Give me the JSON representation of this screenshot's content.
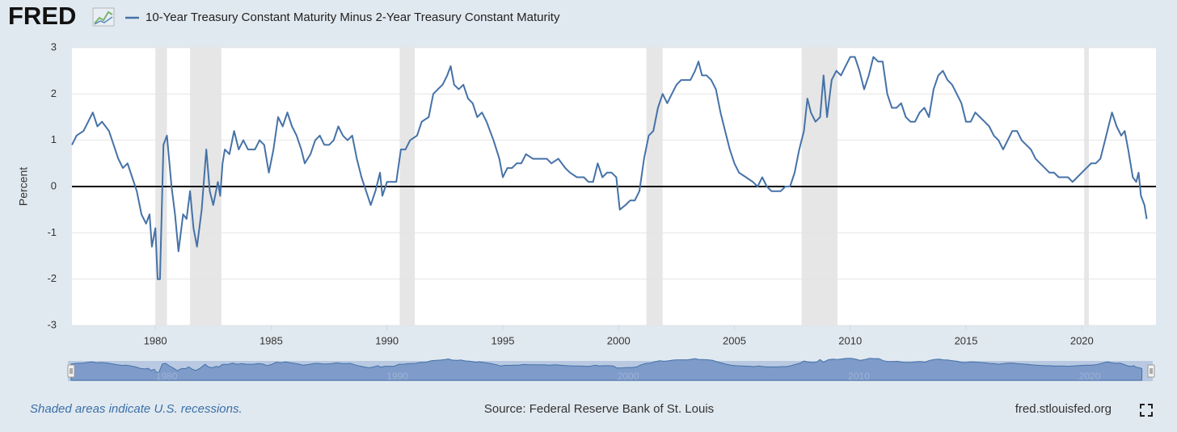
{
  "chart_data": {
    "type": "line",
    "logo": "FRED",
    "title": "10-Year Treasury Constant Maturity Minus 2-Year Treasury Constant Maturity",
    "y_label": "Percent",
    "note": "Shaded areas indicate U.S. recessions.",
    "source": "Source: Federal Reserve Bank of St. Louis",
    "site": "fred.stlouisfed.org",
    "color": "#4572a7",
    "recession_color": "#e6e6e6",
    "recessions": [
      [
        1980.0,
        1980.5
      ],
      [
        1981.5,
        1982.85
      ],
      [
        1990.55,
        1991.2
      ],
      [
        2001.2,
        2001.9
      ],
      [
        2007.9,
        2009.45
      ],
      [
        2020.1,
        2020.3
      ]
    ],
    "xlim": [
      1976.4,
      2023.2
    ],
    "xticks": [
      1980,
      1985,
      1990,
      1995,
      2000,
      2005,
      2010,
      2015,
      2020
    ],
    "ylim": [
      -3,
      3
    ],
    "yticks": [
      -3,
      -2,
      -1,
      0,
      1,
      2,
      3
    ],
    "grid": true,
    "x": [
      1976.4,
      1976.6,
      1976.9,
      1977.1,
      1977.3,
      1977.5,
      1977.7,
      1978.0,
      1978.2,
      1978.4,
      1978.6,
      1978.8,
      1979.0,
      1979.2,
      1979.4,
      1979.6,
      1979.75,
      1979.85,
      1980.0,
      1980.1,
      1980.2,
      1980.35,
      1980.5,
      1980.7,
      1980.85,
      1981.0,
      1981.2,
      1981.35,
      1981.5,
      1981.65,
      1981.8,
      1982.0,
      1982.2,
      1982.35,
      1982.5,
      1982.7,
      1982.8,
      1982.9,
      1983.0,
      1983.2,
      1983.4,
      1983.6,
      1983.8,
      1984.0,
      1984.3,
      1984.5,
      1984.7,
      1984.9,
      1985.1,
      1985.3,
      1985.5,
      1985.7,
      1985.9,
      1986.1,
      1986.3,
      1986.45,
      1986.7,
      1986.9,
      1987.1,
      1987.3,
      1987.5,
      1987.7,
      1987.9,
      1988.1,
      1988.3,
      1988.5,
      1988.7,
      1988.9,
      1989.1,
      1989.3,
      1989.5,
      1989.7,
      1989.8,
      1990.0,
      1990.2,
      1990.4,
      1990.6,
      1990.8,
      1991.0,
      1991.3,
      1991.5,
      1991.8,
      1992.0,
      1992.2,
      1992.4,
      1992.6,
      1992.75,
      1992.9,
      1993.1,
      1993.3,
      1993.5,
      1993.7,
      1993.9,
      1994.1,
      1994.3,
      1994.6,
      1994.85,
      1995.0,
      1995.2,
      1995.4,
      1995.6,
      1995.8,
      1996.0,
      1996.3,
      1996.6,
      1996.9,
      1997.1,
      1997.4,
      1997.7,
      1997.9,
      1998.2,
      1998.5,
      1998.7,
      1998.9,
      1999.1,
      1999.3,
      1999.5,
      1999.7,
      1999.9,
      2000.05,
      2000.3,
      2000.5,
      2000.7,
      2000.9,
      2001.1,
      2001.3,
      2001.5,
      2001.7,
      2001.9,
      2002.1,
      2002.3,
      2002.5,
      2002.7,
      2002.9,
      2003.1,
      2003.3,
      2003.45,
      2003.6,
      2003.8,
      2004.0,
      2004.2,
      2004.4,
      2004.6,
      2004.8,
      2005.0,
      2005.2,
      2005.5,
      2005.8,
      2006.0,
      2006.2,
      2006.4,
      2006.6,
      2006.8,
      2007.0,
      2007.2,
      2007.4,
      2007.6,
      2007.8,
      2008.0,
      2008.15,
      2008.3,
      2008.5,
      2008.7,
      2008.85,
      2009.0,
      2009.2,
      2009.4,
      2009.6,
      2009.8,
      2010.0,
      2010.2,
      2010.4,
      2010.6,
      2010.8,
      2011.0,
      2011.2,
      2011.4,
      2011.6,
      2011.8,
      2012.0,
      2012.2,
      2012.4,
      2012.6,
      2012.8,
      2013.0,
      2013.2,
      2013.4,
      2013.6,
      2013.8,
      2014.0,
      2014.2,
      2014.4,
      2014.6,
      2014.8,
      2015.0,
      2015.2,
      2015.4,
      2015.6,
      2015.8,
      2016.0,
      2016.2,
      2016.4,
      2016.6,
      2016.8,
      2017.0,
      2017.2,
      2017.4,
      2017.6,
      2017.8,
      2018.0,
      2018.2,
      2018.4,
      2018.6,
      2018.8,
      2019.0,
      2019.2,
      2019.4,
      2019.6,
      2019.8,
      2020.0,
      2020.2,
      2020.4,
      2020.6,
      2020.8,
      2021.0,
      2021.2,
      2021.3,
      2021.5,
      2021.7,
      2021.85,
      2022.0,
      2022.2,
      2022.35,
      2022.45,
      2022.55,
      2022.7,
      2022.8
    ],
    "values": [
      0.9,
      1.1,
      1.2,
      1.4,
      1.6,
      1.3,
      1.4,
      1.2,
      0.9,
      0.6,
      0.4,
      0.5,
      0.2,
      -0.1,
      -0.6,
      -0.8,
      -0.6,
      -1.3,
      -0.9,
      -2.0,
      -2.0,
      0.9,
      1.1,
      0.0,
      -0.6,
      -1.4,
      -0.6,
      -0.7,
      -0.1,
      -0.9,
      -1.3,
      -0.5,
      0.8,
      -0.1,
      -0.4,
      0.1,
      -0.2,
      0.5,
      0.8,
      0.7,
      1.2,
      0.8,
      1.0,
      0.8,
      0.8,
      1.0,
      0.9,
      0.3,
      0.8,
      1.5,
      1.3,
      1.6,
      1.3,
      1.1,
      0.8,
      0.5,
      0.7,
      1.0,
      1.1,
      0.9,
      0.9,
      1.0,
      1.3,
      1.1,
      1.0,
      1.1,
      0.6,
      0.2,
      -0.1,
      -0.4,
      -0.1,
      0.3,
      -0.2,
      0.1,
      0.1,
      0.1,
      0.8,
      0.8,
      1.0,
      1.1,
      1.4,
      1.5,
      2.0,
      2.1,
      2.2,
      2.4,
      2.6,
      2.2,
      2.1,
      2.2,
      1.9,
      1.8,
      1.5,
      1.6,
      1.4,
      1.0,
      0.6,
      0.2,
      0.4,
      0.4,
      0.5,
      0.5,
      0.7,
      0.6,
      0.6,
      0.6,
      0.5,
      0.6,
      0.4,
      0.3,
      0.2,
      0.2,
      0.1,
      0.1,
      0.5,
      0.2,
      0.3,
      0.3,
      0.2,
      -0.5,
      -0.4,
      -0.3,
      -0.3,
      -0.1,
      0.6,
      1.1,
      1.2,
      1.7,
      2.0,
      1.8,
      2.0,
      2.2,
      2.3,
      2.3,
      2.3,
      2.5,
      2.7,
      2.4,
      2.4,
      2.3,
      2.1,
      1.6,
      1.2,
      0.8,
      0.5,
      0.3,
      0.2,
      0.1,
      0.0,
      0.2,
      0.0,
      -0.1,
      -0.1,
      -0.1,
      0.0,
      0.0,
      0.3,
      0.8,
      1.2,
      1.9,
      1.6,
      1.4,
      1.5,
      2.4,
      1.5,
      2.3,
      2.5,
      2.4,
      2.6,
      2.8,
      2.8,
      2.5,
      2.1,
      2.4,
      2.8,
      2.7,
      2.7,
      2.0,
      1.7,
      1.7,
      1.8,
      1.5,
      1.4,
      1.4,
      1.6,
      1.7,
      1.5,
      2.1,
      2.4,
      2.5,
      2.3,
      2.2,
      2.0,
      1.8,
      1.4,
      1.4,
      1.6,
      1.5,
      1.4,
      1.3,
      1.1,
      1.0,
      0.8,
      1.0,
      1.2,
      1.2,
      1.0,
      0.9,
      0.8,
      0.6,
      0.5,
      0.4,
      0.3,
      0.3,
      0.2,
      0.2,
      0.2,
      0.1,
      0.2,
      0.3,
      0.4,
      0.5,
      0.5,
      0.6,
      1.0,
      1.4,
      1.6,
      1.3,
      1.1,
      1.2,
      0.8,
      0.2,
      0.1,
      0.3,
      -0.2,
      -0.4,
      -0.7
    ]
  }
}
